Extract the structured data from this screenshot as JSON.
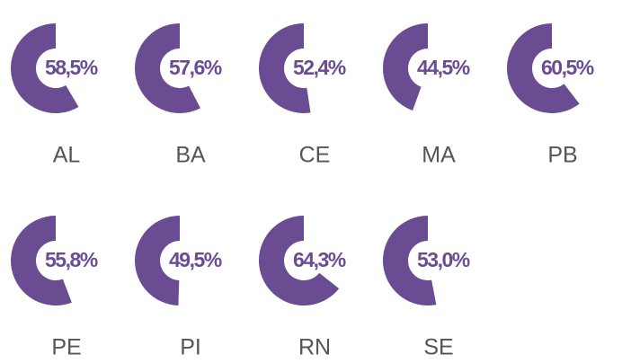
{
  "chart_data": {
    "type": "donut",
    "categories": [
      "AL",
      "BA",
      "CE",
      "MA",
      "PB",
      "PE",
      "PI",
      "RN",
      "SE"
    ],
    "values": [
      58.5,
      57.6,
      52.4,
      44.5,
      60.5,
      55.8,
      49.5,
      64.3,
      53.0
    ],
    "value_labels": [
      "58,5%",
      "57,6%",
      "52,4%",
      "44,5%",
      "60,5%",
      "55,8%",
      "49,5%",
      "64,3%",
      "53,0%"
    ],
    "color": "#6a4c93"
  }
}
